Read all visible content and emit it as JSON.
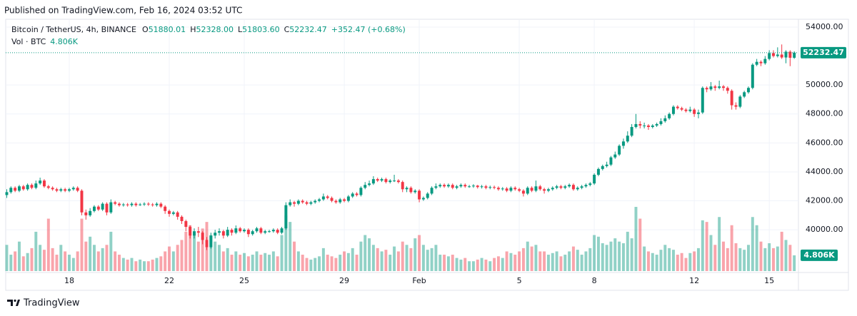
{
  "header": {
    "published": "Published on TradingView.com, Feb 16, 2024 03:52 UTC",
    "symbol": "Bitcoin / TetherUS, 4h, BINANCE",
    "ohlc": [
      {
        "key": "O",
        "value": "51880.01"
      },
      {
        "key": "H",
        "value": "52328.00"
      },
      {
        "key": "L",
        "value": "51803.60"
      },
      {
        "key": "C",
        "value": "52232.47"
      }
    ],
    "change": "+352.47 (+0.68%)",
    "volume_title": "Vol · BTC"
  },
  "footer": "TradingView",
  "chart_data": {
    "type": "candlestick",
    "up_color": "#089981",
    "down_color": "#f23645",
    "grid": true,
    "xlim": [
      -0.25,
      190
    ],
    "ylim": [
      37150,
      54490
    ],
    "volume_lim": [
      0,
      22000
    ],
    "xticks": [
      {
        "value": 15,
        "label": "18"
      },
      {
        "value": 39,
        "label": "22"
      },
      {
        "value": 57,
        "label": "25"
      },
      {
        "value": 81,
        "label": "29"
      },
      {
        "value": 99,
        "label": "Feb"
      },
      {
        "value": 123,
        "label": "5"
      },
      {
        "value": 141,
        "label": "8"
      },
      {
        "value": 165,
        "label": "12"
      },
      {
        "value": 183,
        "label": "15"
      }
    ],
    "yticks": [
      {
        "value": 54000,
        "label": "54000.00"
      },
      {
        "value": 50000,
        "label": "50000.00"
      },
      {
        "value": 48000,
        "label": "48000.00"
      },
      {
        "value": 46000,
        "label": "46000.00"
      },
      {
        "value": 44000,
        "label": "44000.00"
      },
      {
        "value": 42000,
        "label": "42000.00"
      },
      {
        "value": 40000,
        "label": "40000.00"
      }
    ],
    "volume_label": "4.806K",
    "open": [
      42400,
      42600,
      42900,
      42700,
      43000,
      42800,
      43100,
      42900,
      43200,
      43400,
      43000,
      42900,
      42800,
      42700,
      42800,
      42700,
      42800,
      42900,
      42700,
      41200,
      41000,
      41300,
      41600,
      41400,
      41800,
      41200,
      41900,
      41800,
      41700,
      41750,
      41700,
      41800,
      41700,
      41750,
      41800,
      41750,
      41700,
      41800,
      41600,
      41300,
      41100,
      41200,
      40900,
      40600,
      40200,
      39600,
      39900,
      39800,
      39300,
      38800,
      39600,
      39800,
      39900,
      39600,
      40000,
      39800,
      40100,
      39900,
      40000,
      39700,
      39900,
      40100,
      39800,
      39900,
      39900,
      40000,
      39800,
      40100,
      41700,
      41900,
      41800,
      42000,
      41900,
      41800,
      41900,
      42000,
      42100,
      42300,
      42200,
      42000,
      41900,
      42100,
      42000,
      42300,
      42500,
      42400,
      42900,
      43100,
      43200,
      43500,
      43400,
      43500,
      43300,
      43400,
      43400,
      43300,
      42800,
      42900,
      42600,
      42700,
      42100,
      42200,
      42500,
      42900,
      43000,
      43100,
      43000,
      43100,
      42900,
      43000,
      43100,
      43000,
      43000,
      43050,
      42950,
      43000,
      42900,
      42950,
      42900,
      42800,
      42850,
      42700,
      42900,
      42800,
      42700,
      42500,
      42900,
      42700,
      43000,
      42800,
      42700,
      42800,
      42900,
      43000,
      42900,
      43000,
      43100,
      42800,
      42900,
      43000,
      43100,
      43200,
      43800,
      44200,
      44400,
      44500,
      45000,
      45200,
      45800,
      46100,
      46500,
      47100,
      47300,
      47200,
      47200,
      47100,
      47200,
      47300,
      47500,
      47700,
      48000,
      48500,
      48400,
      48300,
      48200,
      48300,
      48000,
      48100,
      49800,
      49700,
      49900,
      49800,
      49900,
      49800,
      49600,
      48600,
      48500,
      49200,
      49500,
      49800,
      51400,
      51600,
      51500,
      51800,
      52200,
      52000,
      52100,
      51900,
      52300,
      51880.01
    ],
    "high": [
      42800,
      43000,
      43000,
      43100,
      43100,
      43200,
      43200,
      43400,
      43600,
      43500,
      43100,
      43000,
      42900,
      42900,
      42900,
      42900,
      43000,
      43000,
      42800,
      41400,
      41500,
      41700,
      41700,
      41900,
      41900,
      42100,
      42000,
      41900,
      41850,
      41850,
      41900,
      41900,
      41850,
      41900,
      41900,
      41850,
      41900,
      41900,
      41700,
      41400,
      41300,
      41300,
      41000,
      40700,
      40300,
      40100,
      40200,
      39900,
      39500,
      39800,
      40000,
      40100,
      40000,
      40200,
      40100,
      40300,
      40200,
      40100,
      40100,
      40000,
      40200,
      40200,
      40000,
      40000,
      40100,
      40100,
      40200,
      41900,
      42100,
      42000,
      42100,
      42100,
      42000,
      42000,
      42100,
      42200,
      42500,
      42400,
      42300,
      42100,
      42200,
      42200,
      42400,
      42600,
      42600,
      43000,
      43300,
      43400,
      43700,
      43600,
      43600,
      43600,
      43500,
      43800,
      43500,
      43400,
      43000,
      43000,
      42800,
      42800,
      42300,
      42600,
      43000,
      43200,
      43200,
      43200,
      43200,
      43200,
      43100,
      43200,
      43200,
      43100,
      43150,
      43100,
      43100,
      43100,
      43050,
      43050,
      43000,
      42950,
      42950,
      43000,
      43000,
      42900,
      42800,
      43000,
      43000,
      43400,
      43100,
      42900,
      42900,
      43000,
      43100,
      43100,
      43100,
      43200,
      43200,
      43000,
      43100,
      43200,
      43300,
      43900,
      44300,
      44500,
      44700,
      45100,
      45400,
      45900,
      46300,
      46800,
      47300,
      48000,
      47500,
      47400,
      47300,
      47300,
      47400,
      47700,
      47900,
      48100,
      48600,
      48600,
      48500,
      48400,
      48500,
      48400,
      48300,
      49900,
      49900,
      50200,
      50000,
      50300,
      50000,
      49900,
      49700,
      48800,
      49300,
      49600,
      49900,
      51500,
      51800,
      51700,
      52000,
      52400,
      52400,
      52600,
      52800,
      52400,
      52400,
      52328
    ],
    "low": [
      42200,
      42500,
      42600,
      42600,
      42700,
      42700,
      42800,
      42800,
      43100,
      42900,
      42800,
      42700,
      42600,
      42600,
      42600,
      42600,
      42700,
      42600,
      41000,
      40700,
      40900,
      41200,
      41300,
      41300,
      41000,
      41100,
      41700,
      41600,
      41600,
      41600,
      41600,
      41600,
      41650,
      41650,
      41650,
      41600,
      41600,
      41500,
      41100,
      40900,
      41000,
      40700,
      40400,
      39900,
      39400,
      39400,
      39500,
      39000,
      38600,
      38700,
      39400,
      39600,
      39400,
      39500,
      39600,
      39700,
      39800,
      39800,
      39500,
      39600,
      39800,
      39700,
      39700,
      39800,
      39800,
      39700,
      39700,
      40000,
      41600,
      41600,
      41700,
      41800,
      41700,
      41700,
      41800,
      41900,
      42000,
      42100,
      41900,
      41800,
      41800,
      41900,
      41900,
      42200,
      42300,
      42300,
      42800,
      43000,
      43100,
      43300,
      43300,
      43200,
      43200,
      43300,
      43200,
      42600,
      42600,
      42500,
      42500,
      41900,
      42000,
      42100,
      42400,
      42800,
      42900,
      42900,
      42900,
      42800,
      42800,
      42900,
      42900,
      42900,
      42900,
      42850,
      42850,
      42800,
      42800,
      42800,
      42700,
      42700,
      42600,
      42600,
      42700,
      42600,
      42300,
      42400,
      42600,
      42600,
      42700,
      42500,
      42600,
      42700,
      42800,
      42800,
      42800,
      42900,
      42700,
      42700,
      42800,
      42900,
      43000,
      43100,
      43700,
      44100,
      44300,
      44400,
      44900,
      45100,
      45600,
      46000,
      46400,
      47000,
      47000,
      47000,
      46900,
      47000,
      47100,
      47200,
      47400,
      47600,
      47900,
      48300,
      48200,
      48100,
      48100,
      47800,
      47700,
      48000,
      49500,
      49600,
      49600,
      49700,
      49600,
      49400,
      48300,
      48300,
      48400,
      49100,
      49400,
      49700,
      51300,
      51300,
      51400,
      51700,
      51900,
      51900,
      51800,
      51500,
      51300,
      51803.6
    ],
    "close": [
      42600,
      42900,
      42700,
      43000,
      42800,
      43100,
      42900,
      43200,
      43400,
      43000,
      42900,
      42800,
      42700,
      42800,
      42700,
      42800,
      42900,
      42700,
      41200,
      41000,
      41300,
      41600,
      41400,
      41800,
      41200,
      41900,
      41800,
      41700,
      41750,
      41700,
      41800,
      41700,
      41750,
      41800,
      41750,
      41700,
      41800,
      41600,
      41300,
      41100,
      41200,
      40900,
      40600,
      40200,
      39600,
      39900,
      39800,
      39300,
      38800,
      39600,
      39800,
      39900,
      39600,
      40000,
      39800,
      40100,
      39900,
      40000,
      39700,
      39900,
      40100,
      39800,
      39900,
      39900,
      40000,
      39800,
      40100,
      41700,
      41900,
      41800,
      42000,
      41900,
      41800,
      41900,
      42000,
      42100,
      42300,
      42200,
      42000,
      41900,
      42100,
      42000,
      42300,
      42500,
      42400,
      42900,
      43100,
      43200,
      43500,
      43400,
      43500,
      43300,
      43400,
      43400,
      43300,
      42800,
      42900,
      42600,
      42700,
      42100,
      42200,
      42500,
      42900,
      43000,
      43100,
      43000,
      43100,
      42900,
      43000,
      43100,
      43000,
      43000,
      43050,
      42950,
      43000,
      42900,
      42950,
      42900,
      42800,
      42850,
      42700,
      42900,
      42800,
      42700,
      42500,
      42900,
      42700,
      43000,
      42800,
      42700,
      42800,
      42900,
      43000,
      42900,
      43000,
      43100,
      42800,
      42900,
      43000,
      43100,
      43200,
      43800,
      44200,
      44400,
      44500,
      45000,
      45200,
      45800,
      46100,
      46500,
      47100,
      47300,
      47200,
      47200,
      47100,
      47200,
      47300,
      47500,
      47700,
      48000,
      48500,
      48400,
      48300,
      48200,
      48300,
      48000,
      48100,
      49800,
      49700,
      49900,
      49800,
      49900,
      49800,
      49600,
      48600,
      48500,
      49200,
      49500,
      49800,
      51400,
      51600,
      51500,
      51800,
      52200,
      52000,
      52100,
      51900,
      52300,
      51880.01,
      52232.47
    ],
    "volume": [
      8000,
      5000,
      6000,
      9000,
      4500,
      5500,
      7000,
      12000,
      8000,
      6500,
      16000,
      7000,
      5000,
      8000,
      6000,
      5000,
      4000,
      6000,
      16000,
      9000,
      10500,
      8000,
      6000,
      7000,
      8000,
      12000,
      6000,
      5000,
      4000,
      3500,
      4000,
      3000,
      3500,
      3000,
      3000,
      3500,
      4000,
      4500,
      6000,
      7500,
      6000,
      8000,
      9500,
      12000,
      14000,
      11000,
      9000,
      13000,
      15000,
      11000,
      9000,
      8000,
      6000,
      7000,
      5000,
      6000,
      5000,
      5500,
      4500,
      5000,
      6000,
      5000,
      5500,
      5000,
      6000,
      4500,
      11000,
      17000,
      15000,
      9000,
      6000,
      5000,
      4000,
      3500,
      4000,
      4500,
      7000,
      5000,
      4500,
      4000,
      5000,
      6000,
      5500,
      7000,
      5000,
      9000,
      11000,
      10000,
      8000,
      7000,
      6000,
      6500,
      5000,
      7500,
      6000,
      9000,
      8000,
      7000,
      10000,
      11000,
      8000,
      6500,
      7000,
      8000,
      5000,
      5000,
      4500,
      5000,
      4000,
      3500,
      4000,
      3000,
      3000,
      3500,
      4000,
      3500,
      3000,
      4000,
      4500,
      4000,
      6000,
      5500,
      5000,
      6000,
      7000,
      9000,
      7500,
      8000,
      6000,
      6000,
      5000,
      5500,
      6000,
      4500,
      5000,
      6000,
      7500,
      6500,
      5000,
      6000,
      7000,
      11000,
      10500,
      8500,
      8000,
      9000,
      10000,
      9000,
      8500,
      12000,
      10000,
      19600,
      16000,
      7500,
      6000,
      5500,
      5000,
      6500,
      8000,
      7000,
      6500,
      5000,
      5500,
      4000,
      5500,
      6000,
      7000,
      15500,
      15000,
      11000,
      8000,
      16500,
      9000,
      7000,
      14000,
      8500,
      7000,
      6500,
      8000,
      16500,
      14000,
      9000,
      7000,
      8500,
      7000,
      7500,
      12000,
      9500,
      8000,
      4806
    ]
  }
}
